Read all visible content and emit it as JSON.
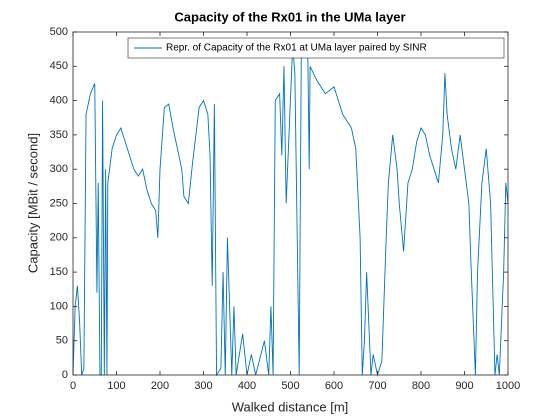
{
  "chart_data": {
    "type": "line",
    "title": "Capacity of the Rx01 in the UMa layer",
    "xlabel": "Walked distance [m]",
    "ylabel": "Capacity [MBit / second]",
    "x": [
      0,
      5,
      10,
      15,
      20,
      25,
      30,
      40,
      50,
      55,
      58,
      62,
      65,
      68,
      72,
      75,
      78,
      80,
      90,
      100,
      110,
      120,
      130,
      140,
      150,
      160,
      170,
      180,
      190,
      195,
      200,
      210,
      220,
      230,
      240,
      250,
      255,
      265,
      275,
      290,
      300,
      310,
      315,
      320,
      325,
      330,
      340,
      345,
      350,
      355,
      365,
      370,
      375,
      380,
      390,
      400,
      410,
      420,
      440,
      450,
      455,
      460,
      465,
      475,
      480,
      485,
      490,
      505,
      510,
      520,
      525,
      540,
      543,
      545,
      560,
      580,
      600,
      610,
      620,
      640,
      650,
      660,
      665,
      670,
      675,
      685,
      690,
      700,
      710,
      720,
      725,
      735,
      745,
      750,
      760,
      770,
      780,
      790,
      800,
      810,
      820,
      830,
      840,
      850,
      855,
      860,
      870,
      880,
      890,
      900,
      910,
      915,
      925,
      930,
      940,
      950,
      960,
      970,
      975,
      980,
      990,
      995,
      1000
    ],
    "series": [
      {
        "name": "Repr. of Capacity of the Rx01 at UMa layer paired by SINR",
        "color": "#0072bd",
        "values": [
          0,
          100,
          130,
          80,
          0,
          10,
          380,
          410,
          425,
          120,
          280,
          0,
          0,
          400,
          0,
          300,
          0,
          280,
          330,
          350,
          360,
          340,
          320,
          300,
          290,
          300,
          270,
          250,
          240,
          200,
          300,
          390,
          395,
          360,
          330,
          300,
          260,
          250,
          310,
          390,
          400,
          380,
          320,
          130,
          395,
          0,
          10,
          150,
          0,
          200,
          0,
          100,
          0,
          20,
          60,
          0,
          30,
          0,
          50,
          0,
          100,
          0,
          400,
          410,
          320,
          450,
          250,
          480,
          440,
          0,
          490,
          460,
          300,
          450,
          430,
          410,
          420,
          400,
          380,
          360,
          330,
          200,
          0,
          50,
          150,
          0,
          30,
          0,
          20,
          200,
          280,
          350,
          300,
          250,
          180,
          280,
          300,
          340,
          360,
          350,
          320,
          300,
          280,
          350,
          440,
          380,
          330,
          300,
          350,
          300,
          250,
          160,
          0,
          150,
          280,
          330,
          250,
          0,
          30,
          0,
          150,
          280,
          250
        ]
      }
    ],
    "xlim": [
      0,
      1000
    ],
    "xticks": [
      0,
      100,
      200,
      300,
      400,
      500,
      600,
      700,
      800,
      900,
      1000
    ],
    "ylim": [
      0,
      500
    ],
    "yticks": [
      0,
      50,
      100,
      150,
      200,
      250,
      300,
      350,
      400,
      450,
      500
    ],
    "grid": false,
    "legend": "top-right"
  }
}
